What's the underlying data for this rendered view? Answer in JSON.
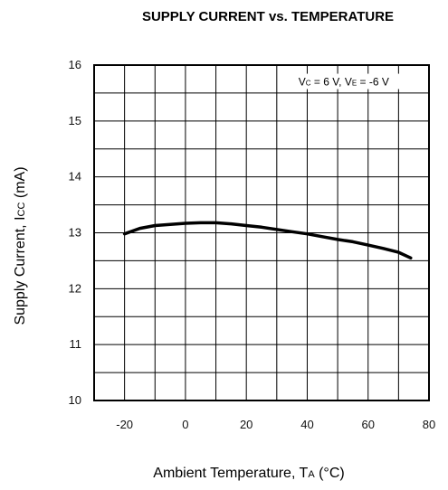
{
  "chart_data": {
    "type": "line",
    "title": "SUPPLY CURRENT vs. TEMPERATURE",
    "xlabel": {
      "main": "Ambient Temperature, T",
      "subscript": "A",
      "unit": " (°C)"
    },
    "ylabel": {
      "main": "Supply Current, I",
      "subscript": "CC",
      "unit": " (mA)"
    },
    "xlim": [
      -30,
      80
    ],
    "ylim": [
      10,
      16
    ],
    "x_ticks": [
      -20,
      0,
      20,
      40,
      60,
      80
    ],
    "x_tick_labels": [
      "-20",
      "0",
      "20",
      "40",
      "60",
      "80"
    ],
    "y_ticks": [
      10,
      11,
      12,
      13,
      14,
      15,
      16
    ],
    "y_tick_labels": [
      "10",
      "11",
      "12",
      "13",
      "14",
      "15",
      "16"
    ],
    "x_grid": [
      -30,
      -20,
      -10,
      0,
      10,
      20,
      30,
      40,
      50,
      60,
      70,
      80
    ],
    "y_grid": [
      10,
      10.5,
      11,
      11.5,
      12,
      12.5,
      13,
      13.5,
      14,
      14.5,
      15,
      15.5,
      16
    ],
    "grid": true,
    "annotation": {
      "text_parts": [
        "V",
        "C",
        " = 6 V, V",
        "E",
        " = -6 V"
      ],
      "x": 52,
      "y": 15.7
    },
    "series": [
      {
        "x": [
          -20,
          -15,
          -10,
          -5,
          0,
          5,
          10,
          15,
          20,
          25,
          30,
          35,
          40,
          45,
          50,
          55,
          60,
          65,
          70,
          74
        ],
        "y": [
          12.98,
          13.08,
          13.13,
          13.15,
          13.17,
          13.18,
          13.18,
          13.16,
          13.13,
          13.1,
          13.06,
          13.02,
          12.98,
          12.93,
          12.88,
          12.84,
          12.78,
          12.72,
          12.65,
          12.55
        ]
      }
    ],
    "colors": {
      "line": "#000000",
      "grid": "#000000",
      "text": "#111111"
    }
  }
}
